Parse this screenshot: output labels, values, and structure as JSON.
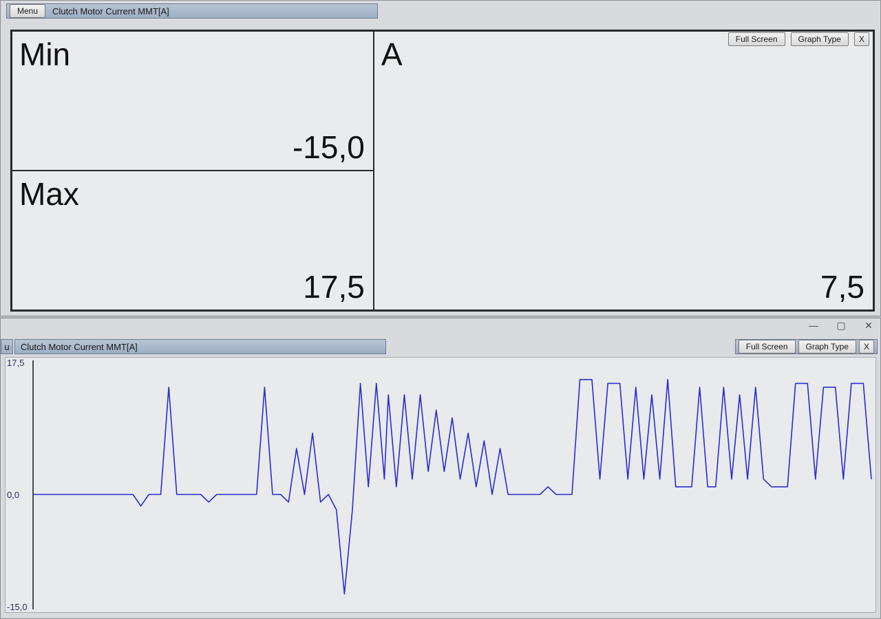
{
  "top_window": {
    "menu_label": "Menu",
    "title": "Clutch Motor Current MMT[A]",
    "cells": {
      "min": {
        "label": "Min",
        "value": "-15,0"
      },
      "max": {
        "label": "Max",
        "value": "17,5"
      },
      "unit": {
        "label": "A",
        "value": "7,5"
      }
    },
    "toolbar": {
      "full_screen": "Full Screen",
      "graph_type": "Graph Type",
      "close": "X"
    }
  },
  "bottom_window": {
    "menu_stub": "u",
    "title": "Clutch Motor Current MMT[A]",
    "toolbar": {
      "full_screen": "Full Screen",
      "graph_type": "Graph Type",
      "close": "X"
    },
    "sys": {
      "min": "—",
      "max": "▢",
      "close": "✕"
    }
  },
  "chart": {
    "type": "line",
    "line_color": "#2a2fd0",
    "line_width": 1.6,
    "axis_color": "#1a1a1a",
    "background_color": "#e8eaec",
    "ylabel_color": "#2a2f6a",
    "ylim": [
      -15.0,
      17.5
    ],
    "yticks": [
      {
        "v": 17.5,
        "label": "17,5"
      },
      {
        "v": 0.0,
        "label": "0,0"
      },
      {
        "v": -15.0,
        "label": "-15,0"
      }
    ],
    "xrange": [
      0,
      210
    ],
    "series": [
      [
        0,
        0
      ],
      [
        25,
        0
      ],
      [
        27,
        -1.5
      ],
      [
        29,
        0
      ],
      [
        32,
        0
      ],
      [
        34,
        14
      ],
      [
        36,
        0
      ],
      [
        42,
        0
      ],
      [
        44,
        -1
      ],
      [
        46,
        0
      ],
      [
        56,
        0
      ],
      [
        58,
        14
      ],
      [
        60,
        0
      ],
      [
        62,
        0
      ],
      [
        64,
        -1
      ],
      [
        66,
        6
      ],
      [
        68,
        0
      ],
      [
        70,
        8
      ],
      [
        72,
        -1
      ],
      [
        74,
        0
      ],
      [
        76,
        -2
      ],
      [
        78,
        -13
      ],
      [
        80,
        -2
      ],
      [
        82,
        14.5
      ],
      [
        84,
        1
      ],
      [
        86,
        14.5
      ],
      [
        88,
        2
      ],
      [
        89,
        13
      ],
      [
        91,
        1
      ],
      [
        93,
        13
      ],
      [
        95,
        2
      ],
      [
        97,
        13
      ],
      [
        99,
        3
      ],
      [
        101,
        11
      ],
      [
        103,
        3
      ],
      [
        105,
        10
      ],
      [
        107,
        2
      ],
      [
        109,
        8
      ],
      [
        111,
        1
      ],
      [
        113,
        7
      ],
      [
        115,
        0
      ],
      [
        117,
        6
      ],
      [
        119,
        0
      ],
      [
        121,
        0
      ],
      [
        127,
        0
      ],
      [
        129,
        1
      ],
      [
        131,
        0
      ],
      [
        135,
        0
      ],
      [
        137,
        15
      ],
      [
        140,
        15
      ],
      [
        142,
        2
      ],
      [
        144,
        14.5
      ],
      [
        147,
        14.5
      ],
      [
        149,
        2
      ],
      [
        151,
        14
      ],
      [
        153,
        2
      ],
      [
        155,
        13
      ],
      [
        157,
        2
      ],
      [
        159,
        15
      ],
      [
        161,
        1
      ],
      [
        165,
        1
      ],
      [
        167,
        14
      ],
      [
        169,
        1
      ],
      [
        171,
        1
      ],
      [
        173,
        14
      ],
      [
        175,
        2
      ],
      [
        177,
        13
      ],
      [
        179,
        2
      ],
      [
        181,
        14
      ],
      [
        183,
        2
      ],
      [
        185,
        1
      ],
      [
        189,
        1
      ],
      [
        191,
        14.5
      ],
      [
        194,
        14.5
      ],
      [
        196,
        2
      ],
      [
        198,
        14
      ],
      [
        201,
        14
      ],
      [
        203,
        2
      ],
      [
        205,
        14.5
      ],
      [
        208,
        14.5
      ],
      [
        210,
        2
      ]
    ]
  }
}
